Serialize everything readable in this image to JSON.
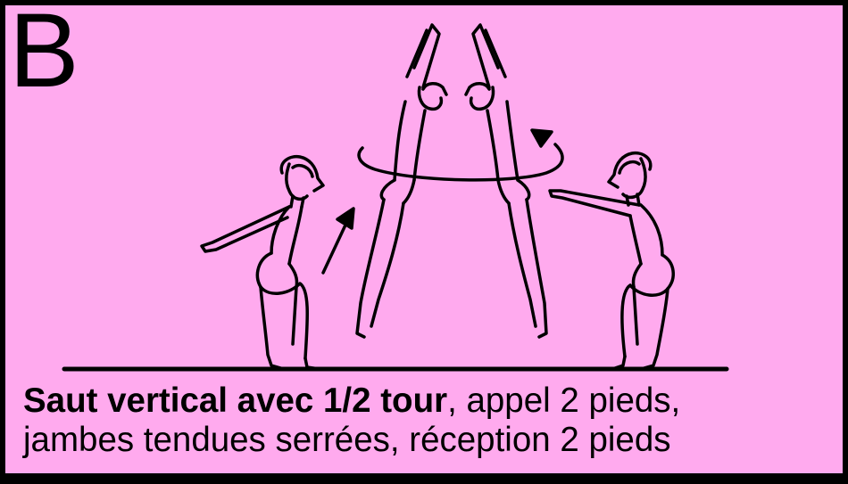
{
  "card": {
    "letter": "B",
    "background_color": "#ffaaee",
    "border_color": "#000000"
  },
  "illustration": {
    "figures": [
      "crouch-left-gymnast",
      "jump-gymnast-facing-right",
      "jump-gymnast-facing-left",
      "crouch-right-gymnast"
    ],
    "arrows": [
      "up-arrow",
      "rotation-arrow"
    ]
  },
  "caption": {
    "bold_text": "Saut vertical avec 1/2 tour",
    "line1_rest": ", appel 2 pieds,",
    "line2": "jambes tendues serrées, réception 2 pieds"
  }
}
